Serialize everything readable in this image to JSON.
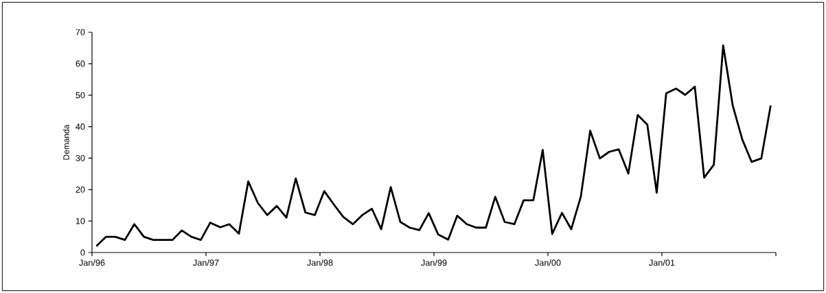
{
  "chart_data": {
    "type": "line",
    "ylabel": "Demanda",
    "color": "#000000",
    "line_style": "solid",
    "x": [
      "1996-01-15",
      "1996-02-15",
      "1996-03-15",
      "1996-04-15",
      "1996-05-15",
      "1996-06-15",
      "1996-07-15",
      "1996-08-15",
      "1996-09-15",
      "1996-10-15",
      "1996-11-15",
      "1996-12-15",
      "1997-01-15",
      "1997-02-15",
      "1997-03-15",
      "1997-04-15",
      "1997-05-15",
      "1997-06-15",
      "1997-07-15",
      "1997-08-15",
      "1997-09-15",
      "1997-10-15",
      "1997-11-15",
      "1997-12-15",
      "1998-01-15",
      "1998-02-15",
      "1998-03-15",
      "1998-04-15",
      "1998-05-15",
      "1998-06-15",
      "1998-07-15",
      "1998-08-15",
      "1998-09-15",
      "1998-10-15",
      "1998-11-15",
      "1998-12-15",
      "1999-01-15",
      "1999-02-15",
      "1999-03-15",
      "1999-04-15",
      "1999-05-15",
      "1999-06-15",
      "1999-07-15",
      "1999-08-15",
      "1999-09-15",
      "1999-10-15",
      "1999-11-15",
      "1999-12-15",
      "2000-01-15",
      "2000-02-15",
      "2000-03-15",
      "2000-04-15",
      "2000-05-15",
      "2000-06-15",
      "2000-07-15",
      "2000-08-15",
      "2000-09-15",
      "2000-10-15",
      "2000-11-15",
      "2000-12-15",
      "2001-01-15",
      "2001-02-15",
      "2001-03-15",
      "2001-04-15",
      "2001-05-15",
      "2001-06-15",
      "2001-07-15",
      "2001-08-15",
      "2001-09-15",
      "2001-10-15",
      "2001-11-15",
      "2001-12-15"
    ],
    "values": [
      2,
      5,
      5,
      4,
      9,
      5,
      4,
      4,
      4,
      7,
      5,
      4,
      9.5,
      8,
      9,
      6,
      22.6,
      15.7,
      11.9,
      14.8,
      11.1,
      23.5,
      12.7,
      11.9,
      19.5,
      15.1,
      11.3,
      9,
      11.9,
      13.9,
      7.4,
      20.8,
      9.7,
      7.9,
      7.1,
      12.5,
      5.7,
      4.1,
      11.7,
      9,
      7.9,
      7.9,
      17.7,
      9.7,
      9,
      16.6,
      16.6,
      32.6,
      5.9,
      12.6,
      7.4,
      17.8,
      38.7,
      29.9,
      32,
      32.8,
      25.1,
      43.7,
      40.6,
      19,
      50.6,
      52.1,
      50.1,
      52.7,
      23.8,
      27.9,
      65.8,
      46.8,
      35.9,
      28.8,
      29.9,
      46.7
    ],
    "xlim": [
      "1996-01-01",
      "2002-01-01"
    ],
    "xticks": [
      {
        "value": "1996-01-01",
        "label": "Jan/96"
      },
      {
        "value": "1997-01-01",
        "label": "Jan/97"
      },
      {
        "value": "1998-01-01",
        "label": "Jan/98"
      },
      {
        "value": "1999-01-01",
        "label": "Jan/99"
      },
      {
        "value": "2000-01-01",
        "label": "Jan/00"
      },
      {
        "value": "2001-01-01",
        "label": "Jan/01"
      },
      {
        "value": "2002-01-01",
        "label": null
      }
    ],
    "ylim": [
      0,
      70
    ],
    "yticks": [
      0,
      10,
      20,
      30,
      40,
      50,
      60,
      70
    ]
  }
}
